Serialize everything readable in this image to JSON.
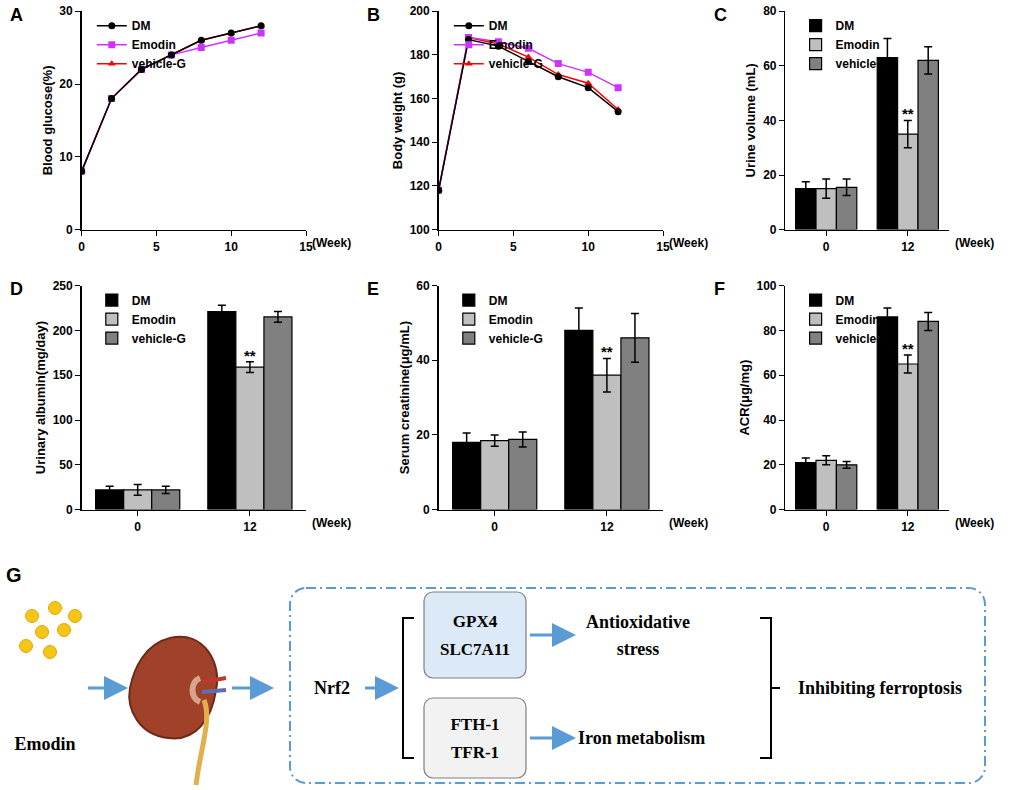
{
  "chart_data": [
    {
      "title": "A",
      "type": "line",
      "x": [
        0,
        2,
        4,
        6,
        8,
        10,
        12
      ],
      "x_label": "(Week)",
      "y_label": "Blood glucose(%)",
      "xlim": [
        0,
        15
      ],
      "xticks": [
        0,
        5,
        10,
        15
      ],
      "ylim": [
        0,
        30
      ],
      "yticks": [
        0,
        10,
        20,
        30
      ],
      "legend": "upper left",
      "series": [
        {
          "name": "DM",
          "color": "#000000",
          "marker": "circle",
          "values": [
            8,
            18,
            22,
            24,
            26,
            27,
            28
          ]
        },
        {
          "name": "Emodin",
          "color": "#cc33ff",
          "marker": "square",
          "values": [
            8,
            18,
            22,
            24,
            25,
            26,
            27
          ]
        },
        {
          "name": "vehicle-G",
          "color": "#ff0000",
          "marker": "triangle-up",
          "values": [
            8,
            18,
            22,
            24,
            26,
            27,
            28
          ]
        }
      ]
    },
    {
      "title": "B",
      "type": "line",
      "x": [
        0,
        2,
        4,
        6,
        8,
        10,
        12
      ],
      "x_label": "(Week)",
      "y_label": "Body weight (g)",
      "xlim": [
        0,
        15
      ],
      "xticks": [
        0,
        5,
        10,
        15
      ],
      "ylim": [
        100,
        200
      ],
      "yticks": [
        100,
        120,
        140,
        160,
        180,
        200
      ],
      "legend": "upper left",
      "series": [
        {
          "name": "DM",
          "color": "#000000",
          "marker": "circle",
          "values": [
            118,
            187,
            184,
            177,
            170,
            165,
            154
          ]
        },
        {
          "name": "Emodin",
          "color": "#cc33ff",
          "marker": "square",
          "values": [
            118,
            188,
            186,
            183,
            176,
            172,
            165
          ]
        },
        {
          "name": "vehicle-G",
          "color": "#ff0000",
          "marker": "triangle-up",
          "values": [
            118,
            188,
            185,
            179,
            171,
            167,
            155
          ]
        }
      ]
    },
    {
      "title": "C",
      "type": "bar",
      "categories": [
        "0",
        "12"
      ],
      "x_label": "(Week)",
      "y_label": "Urine volume (mL)",
      "ylim": [
        0,
        80
      ],
      "yticks": [
        0,
        20,
        40,
        60,
        80
      ],
      "legend": "upper left",
      "series": [
        {
          "name": "DM",
          "color": "#000000",
          "values": [
            15,
            63
          ],
          "errors": [
            2.5,
            7
          ]
        },
        {
          "name": "Emodin",
          "color": "#bfbfbf",
          "values": [
            15,
            35
          ],
          "errors": [
            3.5,
            5
          ]
        },
        {
          "name": "vehicle-G",
          "color": "#808080",
          "values": [
            15.5,
            62
          ],
          "errors": [
            3,
            5
          ]
        }
      ],
      "annotations": [
        {
          "text": "**",
          "category": "12",
          "series": "Emodin"
        }
      ]
    },
    {
      "title": "D",
      "type": "bar",
      "categories": [
        "0",
        "12"
      ],
      "x_label": "(Week)",
      "y_label": "Urinary albumin(mg/day)",
      "ylim": [
        0,
        250
      ],
      "yticks": [
        0,
        50,
        100,
        150,
        200,
        250
      ],
      "legend": "upper left",
      "series": [
        {
          "name": "DM",
          "color": "#000000",
          "values": [
            22,
            221
          ],
          "errors": [
            4,
            7
          ]
        },
        {
          "name": "Emodin",
          "color": "#bfbfbf",
          "values": [
            22,
            159
          ],
          "errors": [
            6,
            6
          ]
        },
        {
          "name": "vehicle-G",
          "color": "#808080",
          "values": [
            22,
            215
          ],
          "errors": [
            4,
            6
          ]
        }
      ],
      "annotations": [
        {
          "text": "**",
          "category": "12",
          "series": "Emodin"
        }
      ]
    },
    {
      "title": "E",
      "type": "bar",
      "categories": [
        "0",
        "12"
      ],
      "x_label": "(Week)",
      "y_label": "Serum creatinine(μg/mL)",
      "ylim": [
        0,
        60
      ],
      "yticks": [
        0,
        20,
        40,
        60
      ],
      "legend": "upper left",
      "series": [
        {
          "name": "DM",
          "color": "#000000",
          "values": [
            18,
            48
          ],
          "errors": [
            2.5,
            6
          ]
        },
        {
          "name": "Emodin",
          "color": "#bfbfbf",
          "values": [
            18.5,
            36
          ],
          "errors": [
            1.5,
            4.5
          ]
        },
        {
          "name": "vehicle-G",
          "color": "#808080",
          "values": [
            18.8,
            46
          ],
          "errors": [
            2,
            6.5
          ]
        }
      ],
      "annotations": [
        {
          "text": "**",
          "category": "12",
          "series": "Emodin"
        }
      ]
    },
    {
      "title": "F",
      "type": "bar",
      "categories": [
        "0",
        "12"
      ],
      "x_label": "(Week)",
      "y_label": "ACR(μg/mg)",
      "ylim": [
        0,
        100
      ],
      "yticks": [
        0,
        20,
        40,
        60,
        80,
        100
      ],
      "legend": "upper left",
      "series": [
        {
          "name": "DM",
          "color": "#000000",
          "values": [
            21,
            86
          ],
          "errors": [
            2,
            4
          ]
        },
        {
          "name": "Emodin",
          "color": "#bfbfbf",
          "values": [
            22,
            65
          ],
          "errors": [
            2,
            4
          ]
        },
        {
          "name": "vehicle-G",
          "color": "#808080",
          "values": [
            20,
            84
          ],
          "errors": [
            1.5,
            4
          ]
        }
      ],
      "annotations": [
        {
          "text": "**",
          "category": "12",
          "series": "Emodin"
        }
      ]
    }
  ],
  "diagram": {
    "panel": "G",
    "drug": "Emodin",
    "regulator": "Nrf2",
    "branches": [
      {
        "genes": [
          "GPX4",
          "SLC7A11"
        ],
        "effect": [
          "Antioxidative",
          "stress"
        ]
      },
      {
        "genes": [
          "FTH-1",
          "TFR-1"
        ],
        "effect": [
          "Iron metabolism"
        ]
      }
    ],
    "outcome": "Inhibiting ferroptosis"
  }
}
